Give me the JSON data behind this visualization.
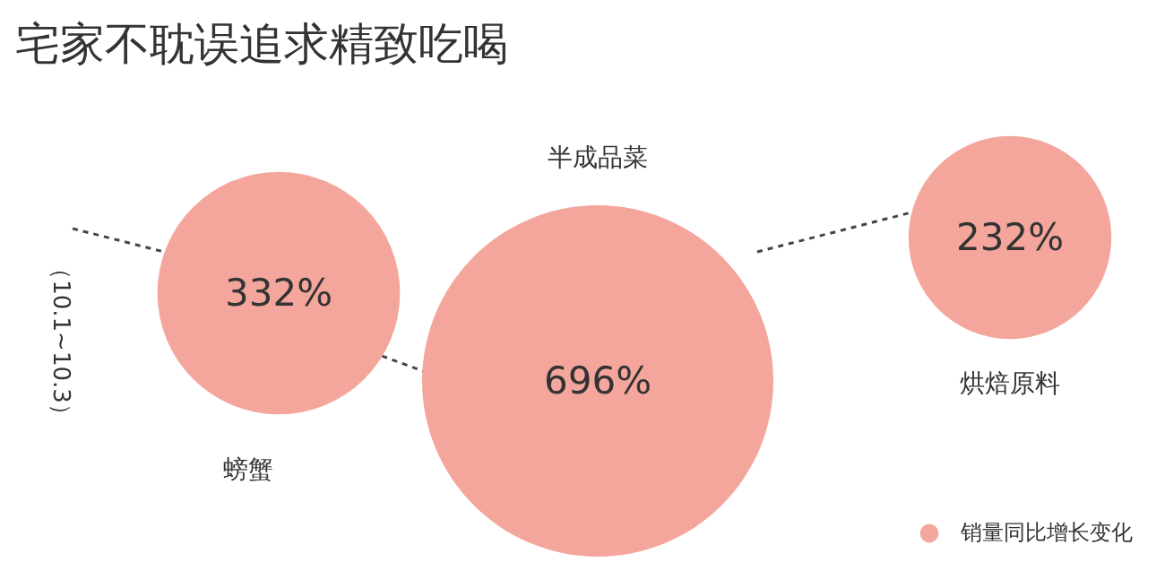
{
  "chart_data": {
    "type": "other",
    "title": "宅家不耽误追求精致吃喝",
    "categories": [
      "螃蟹",
      "半成品菜",
      "烘焙原料"
    ],
    "series": [
      {
        "name": "销量同比增长变化",
        "color": "#f4a69c",
        "values": [
          332,
          696,
          232
        ],
        "value_labels": [
          "332%",
          "696%",
          "232%"
        ]
      }
    ],
    "legend": "bottom right",
    "annotations": [
      "（10.1~10.3）"
    ]
  }
}
